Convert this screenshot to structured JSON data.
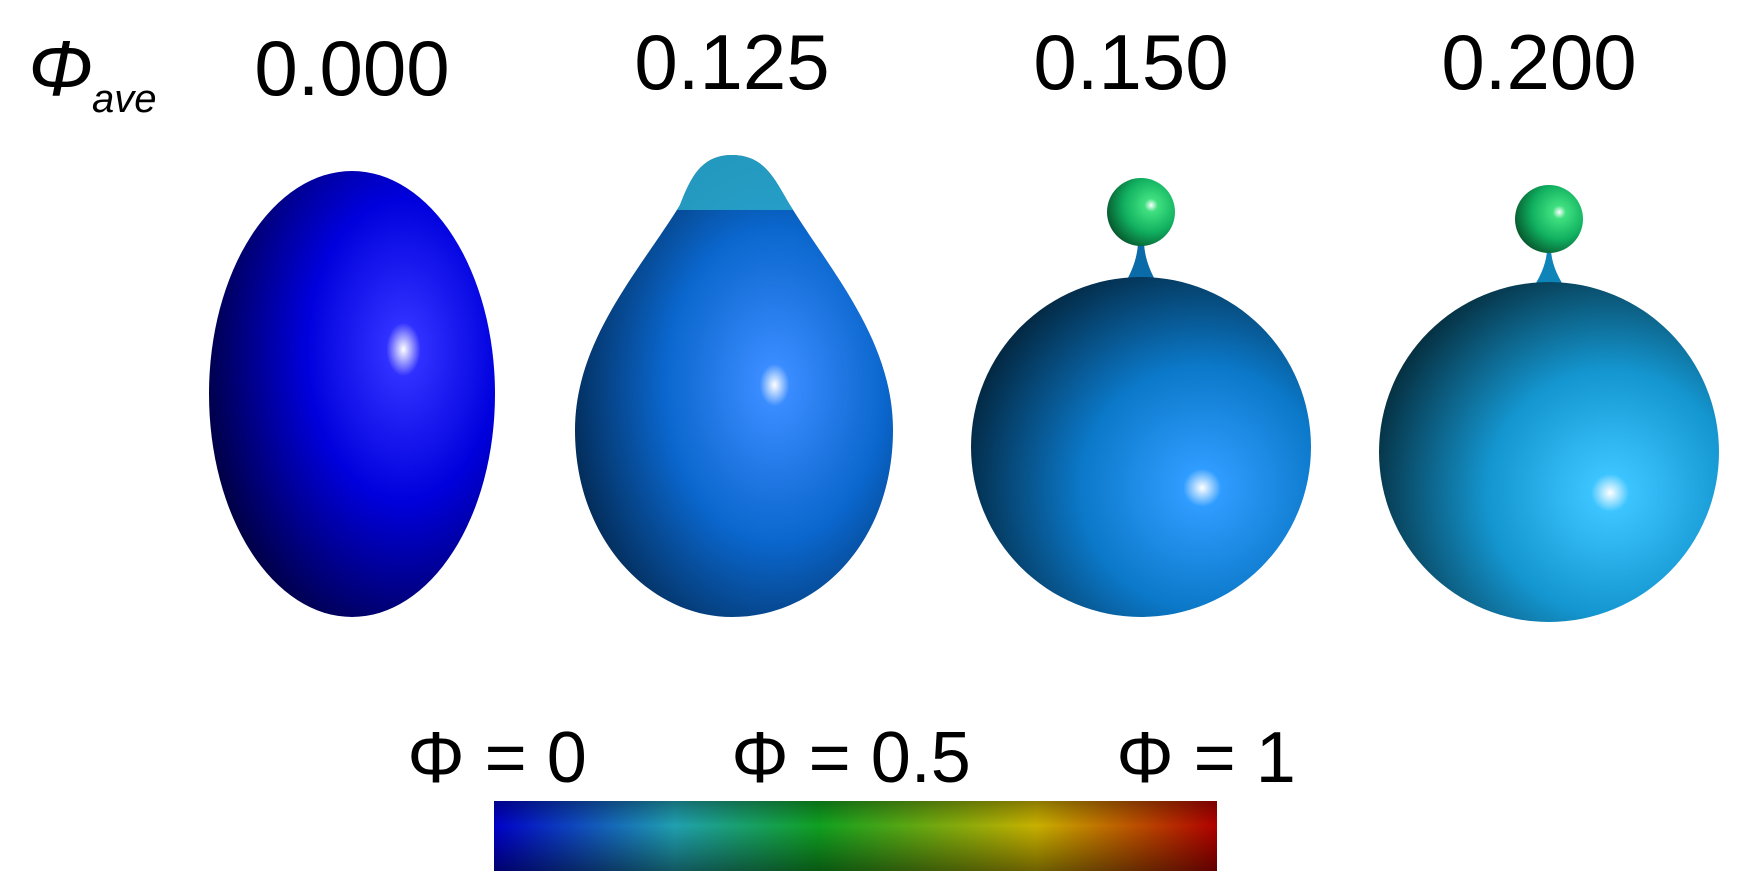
{
  "header": {
    "symbol": "Φ",
    "subscript": "ave"
  },
  "panels": [
    {
      "label": "0.000"
    },
    {
      "label": "0.125"
    },
    {
      "label": "0.150"
    },
    {
      "label": "0.200"
    }
  ],
  "colorbar": {
    "labels": [
      "Φ = 0",
      "Φ = 0.5",
      "Φ = 1"
    ]
  }
}
